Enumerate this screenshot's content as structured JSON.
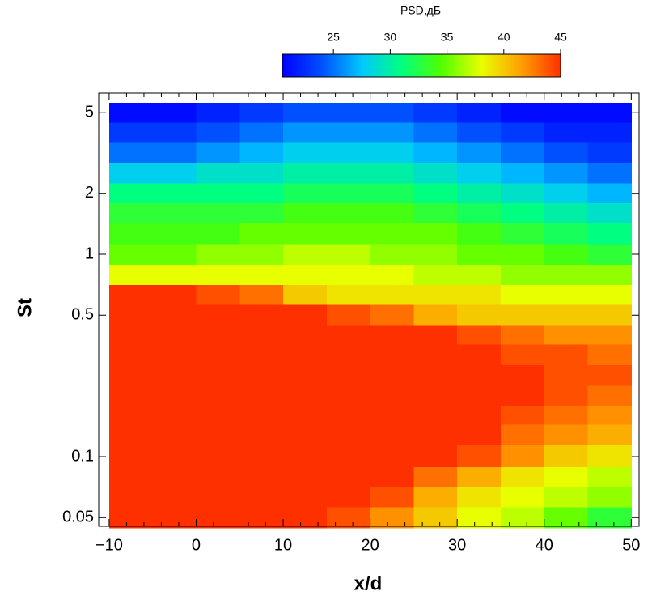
{
  "chart_data": {
    "type": "heatmap",
    "colorbar_title": "PSD,дБ",
    "x_label": "x/d",
    "y_label": "St",
    "y_scale": "log",
    "xlim": [
      -11.2,
      50.9
    ],
    "ylim": [
      0.0453,
      6.25
    ],
    "xticks": [
      {
        "value": -10,
        "label": "−10"
      },
      0,
      10,
      20,
      30,
      40,
      50
    ],
    "yticks": [
      0.05,
      0.1,
      0.5,
      1,
      2,
      5
    ],
    "clim": [
      20.5,
      45
    ],
    "cticks": [
      25,
      30,
      35,
      40,
      45
    ],
    "colormap": [
      "#0000ff",
      "#0050ff",
      "#00c8ff",
      "#00ff80",
      "#50ff00",
      "#e8ff00",
      "#ffa000",
      "#ff3000"
    ],
    "x": [
      -7.5,
      -2.5,
      2.5,
      7.5,
      12.5,
      17.5,
      22.5,
      27.5,
      32.5,
      37.5,
      42.5,
      47.5
    ],
    "y": [
      5.0,
      4.0,
      3.2,
      2.5,
      2.0,
      1.6,
      1.26,
      1.0,
      0.79,
      0.63,
      0.5,
      0.4,
      0.32,
      0.25,
      0.2,
      0.16,
      0.13,
      0.1,
      0.079,
      0.063,
      0.05
    ],
    "z": [
      [
        21,
        21,
        22,
        23,
        24,
        24,
        24,
        23,
        22,
        21,
        21,
        21
      ],
      [
        23,
        23,
        24,
        25,
        26,
        26,
        26,
        25,
        24,
        23,
        22,
        22
      ],
      [
        25,
        25,
        26,
        27,
        28,
        28,
        28,
        27,
        26,
        25,
        24,
        23
      ],
      [
        28,
        28,
        29,
        29,
        30,
        30,
        30,
        29,
        28,
        27,
        26,
        25
      ],
      [
        31,
        31,
        31,
        31,
        32,
        32,
        32,
        31,
        30,
        29,
        28,
        27
      ],
      [
        33,
        33,
        33,
        33,
        34,
        34,
        34,
        33,
        32,
        31,
        30,
        29
      ],
      [
        34,
        34,
        34,
        35,
        35,
        35,
        35,
        35,
        34,
        33,
        32,
        31
      ],
      [
        35,
        35,
        36,
        36,
        37,
        37,
        36,
        36,
        35,
        35,
        34,
        33
      ],
      [
        38,
        38,
        38,
        38,
        38,
        38,
        38,
        37,
        37,
        36,
        36,
        36
      ],
      [
        45,
        45,
        44,
        43,
        40,
        39,
        39,
        39,
        39,
        38,
        38,
        38
      ],
      [
        45,
        45,
        45,
        45,
        45,
        44,
        43,
        41,
        40,
        40,
        40,
        40
      ],
      [
        45,
        45,
        45,
        45,
        45,
        45,
        45,
        45,
        44,
        43,
        42,
        42
      ],
      [
        45,
        45,
        45,
        45,
        45,
        45,
        45,
        45,
        45,
        44,
        44,
        43
      ],
      [
        45,
        45,
        45,
        45,
        45,
        45,
        45,
        45,
        45,
        45,
        44,
        44
      ],
      [
        45,
        45,
        45,
        45,
        45,
        45,
        45,
        45,
        45,
        45,
        44,
        43
      ],
      [
        45,
        45,
        45,
        45,
        45,
        45,
        45,
        45,
        45,
        44,
        43,
        42
      ],
      [
        45,
        45,
        45,
        45,
        45,
        45,
        45,
        45,
        45,
        43,
        42,
        41
      ],
      [
        45,
        45,
        45,
        45,
        45,
        45,
        45,
        45,
        44,
        42,
        40,
        39
      ],
      [
        45,
        45,
        45,
        45,
        45,
        45,
        45,
        43,
        41,
        39,
        38,
        37
      ],
      [
        45,
        45,
        45,
        45,
        45,
        45,
        44,
        41,
        39,
        38,
        37,
        36
      ],
      [
        45,
        45,
        45,
        45,
        45,
        44,
        42,
        40,
        38,
        37,
        35,
        33
      ]
    ]
  }
}
